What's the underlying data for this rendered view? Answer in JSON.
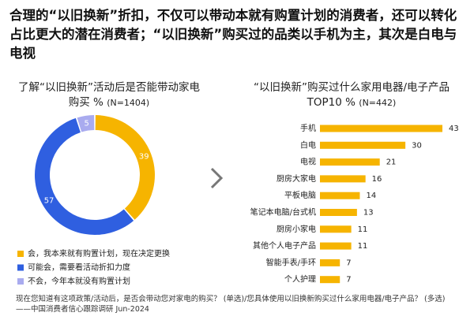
{
  "header": {
    "title": "合理的“以旧换新”折扣，不仅可以带动本就有购置计划的消费者，还可以转化占比更大的潜在消费者；“以旧换新”购买过的品类以手机为主，其次是白电与电视"
  },
  "chart_data": [
    {
      "type": "donut",
      "title": "了解“以旧换新”活动后是否能带动家电购买 %",
      "subtitle": "(N=1404)",
      "categories": [
        "会，我本来就有购置计划，现在决定更换",
        "可能会，需要看活动折扣力度",
        "不会，今年本就没有购置计划"
      ],
      "values": [
        39,
        57,
        5
      ],
      "colors": [
        "#f6b400",
        "#2f5fe0",
        "#a9abef"
      ]
    },
    {
      "type": "hbar",
      "title": "“以旧换新”购买过什么家用电器/电子产品TOP10 %",
      "subtitle": "(N=442)",
      "categories": [
        "手机",
        "白电",
        "电视",
        "厨房大家电",
        "平板电脑",
        "笔记本电脑/台式机",
        "厨房小家电",
        "其他个人电子产品",
        "智能手表/手环",
        "个人护理"
      ],
      "values": [
        43,
        30,
        21,
        16,
        14,
        13,
        11,
        11,
        7,
        7
      ],
      "color": "#f6b400"
    }
  ],
  "footer": {
    "note": "现在您知道有这项政策/活动后，是否会带动您对家电的购买？ (单选)/您具体使用以旧换新购买过什么家用电器/电子产品？ (多选) ——中国消费者信心跟踪调研 Jun-2024"
  }
}
